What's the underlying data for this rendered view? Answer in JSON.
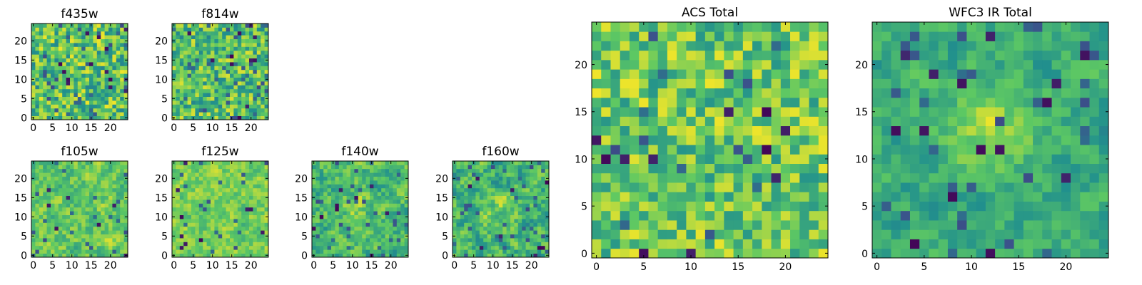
{
  "chart_data": [
    {
      "type": "heatmap",
      "title": "f435w",
      "xticks": [
        "0",
        "5",
        "10",
        "15",
        "20"
      ],
      "yticks": [
        "0",
        "5",
        "10",
        "15",
        "20"
      ],
      "grid_size": 25,
      "xlim": [
        0,
        25
      ],
      "ylim": [
        0,
        25
      ],
      "colormap": "viridis"
    },
    {
      "type": "heatmap",
      "title": "f814w",
      "xticks": [
        "0",
        "5",
        "10",
        "15",
        "20"
      ],
      "yticks": [
        "0",
        "5",
        "10",
        "15",
        "20"
      ],
      "grid_size": 25,
      "xlim": [
        0,
        25
      ],
      "ylim": [
        0,
        25
      ],
      "colormap": "viridis"
    },
    {
      "type": "heatmap",
      "title": "f105w",
      "xticks": [
        "0",
        "5",
        "10",
        "15",
        "20"
      ],
      "yticks": [
        "0",
        "5",
        "10",
        "15",
        "20"
      ],
      "grid_size": 25,
      "xlim": [
        0,
        25
      ],
      "ylim": [
        0,
        25
      ],
      "colormap": "viridis"
    },
    {
      "type": "heatmap",
      "title": "f125w",
      "xticks": [
        "0",
        "5",
        "10",
        "15",
        "20"
      ],
      "yticks": [
        "0",
        "5",
        "10",
        "15",
        "20"
      ],
      "grid_size": 25,
      "xlim": [
        0,
        25
      ],
      "ylim": [
        0,
        25
      ],
      "colormap": "viridis"
    },
    {
      "type": "heatmap",
      "title": "f140w",
      "xticks": [
        "0",
        "5",
        "10",
        "15",
        "20"
      ],
      "yticks": [
        "0",
        "5",
        "10",
        "15",
        "20"
      ],
      "grid_size": 25,
      "xlim": [
        0,
        25
      ],
      "ylim": [
        0,
        25
      ],
      "colormap": "viridis"
    },
    {
      "type": "heatmap",
      "title": "f160w",
      "xticks": [
        "0",
        "5",
        "10",
        "15",
        "20"
      ],
      "yticks": [
        "0",
        "5",
        "10",
        "15",
        "20"
      ],
      "grid_size": 25,
      "xlim": [
        0,
        25
      ],
      "ylim": [
        0,
        25
      ],
      "colormap": "viridis"
    },
    {
      "type": "heatmap",
      "title": "ACS Total",
      "xticks": [
        "0",
        "5",
        "10",
        "15",
        "20"
      ],
      "yticks": [
        "0",
        "5",
        "10",
        "15",
        "20"
      ],
      "grid_size": 25,
      "xlim": [
        0,
        25
      ],
      "ylim": [
        0,
        25
      ],
      "colormap": "viridis"
    },
    {
      "type": "heatmap",
      "title": "WFC3 IR Total",
      "xticks": [
        "0",
        "5",
        "10",
        "15",
        "20"
      ],
      "yticks": [
        "0",
        "5",
        "10",
        "15",
        "20"
      ],
      "grid_size": 25,
      "xlim": [
        0,
        25
      ],
      "ylim": [
        0,
        25
      ],
      "colormap": "viridis"
    }
  ],
  "colors": {
    "viridis": [
      "#440154",
      "#3b528b",
      "#21908d",
      "#5dc863",
      "#fde725"
    ],
    "axis": "#000000"
  }
}
